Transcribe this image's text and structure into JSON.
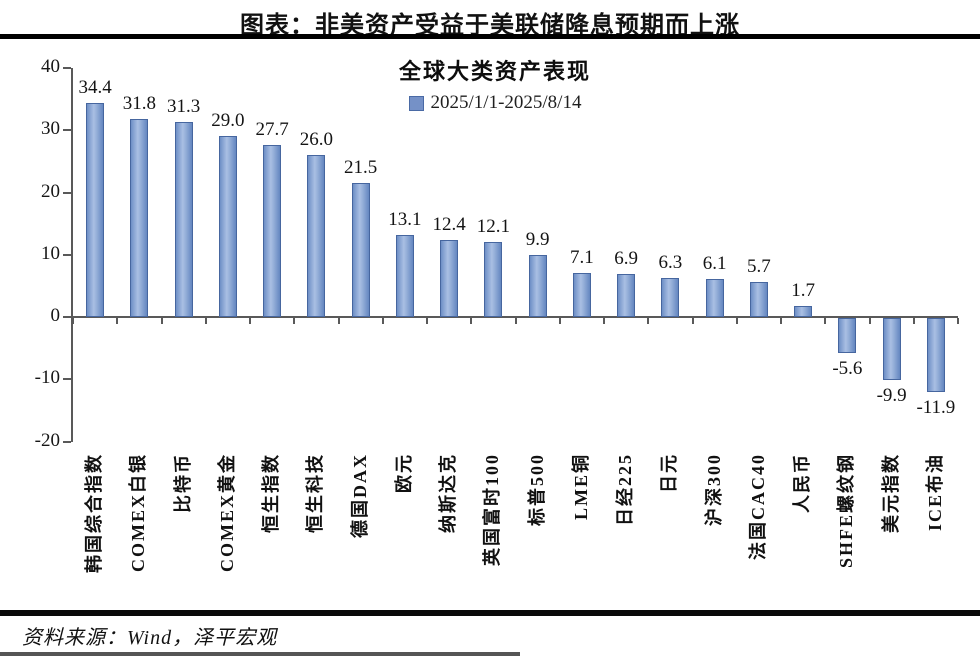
{
  "page": {
    "doc_title": "图表：非美资产受益于美联储降息预期而上涨",
    "source": "资料来源：Wind，泽平宏观"
  },
  "chart_data": {
    "type": "bar",
    "title": "全球大类资产表现",
    "legend": "2025/1/1-2025/8/14",
    "legend_position": "top-center",
    "grid": false,
    "xlabel": "",
    "ylabel": "",
    "ylim": [
      -20,
      40
    ],
    "y_ticks": [
      40,
      30,
      20,
      10,
      0,
      -10,
      -20
    ],
    "categories": [
      "韩国综合指数",
      "COMEX白银",
      "比特币",
      "COMEX黄金",
      "恒生指数",
      "恒生科技",
      "德国DAX",
      "欧元",
      "纳斯达克",
      "英国富时100",
      "标普500",
      "LME铜",
      "日经225",
      "日元",
      "沪深300",
      "法国CAC40",
      "人民币",
      "SHFE螺纹钢",
      "美元指数",
      "ICE布油"
    ],
    "values": [
      34.4,
      31.8,
      31.3,
      29.0,
      27.7,
      26.0,
      21.5,
      13.1,
      12.4,
      12.1,
      9.9,
      7.1,
      6.9,
      6.3,
      6.1,
      5.7,
      1.7,
      -5.6,
      -9.9,
      -11.9
    ],
    "value_labels": [
      "34.4",
      "31.8",
      "31.3",
      "29.0",
      "27.7",
      "26.0",
      "21.5",
      "13.1",
      "12.4",
      "12.1",
      "9.9",
      "7.1",
      "6.9",
      "6.3",
      "6.1",
      "5.7",
      "1.7",
      "-5.6",
      "-9.9",
      "-11.9"
    ],
    "bar_color": "#7b99ce",
    "bar_border_color": "#46669f",
    "axis_color": "#595959"
  }
}
